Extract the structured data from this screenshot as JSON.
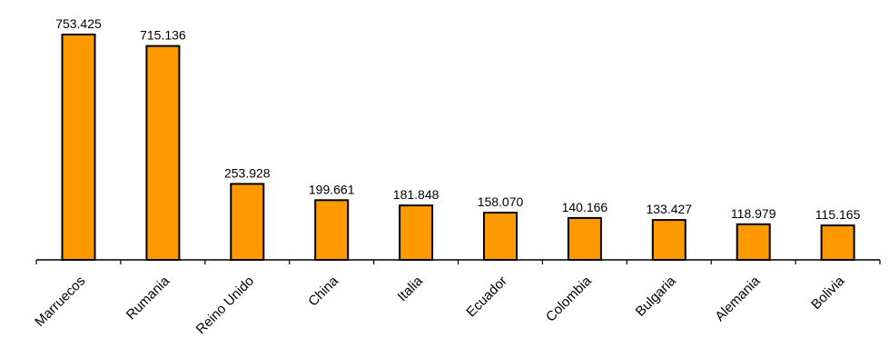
{
  "chart_data": {
    "type": "bar",
    "categories": [
      "Marruecos",
      "Rumania",
      "Reino Unido",
      "China",
      "Italia",
      "Ecuador",
      "Colombia",
      "Bulgaria",
      "Alemania",
      "Bolivia"
    ],
    "values": [
      753425,
      715136,
      253928,
      199661,
      181848,
      158070,
      140166,
      133427,
      118979,
      115165
    ],
    "value_labels": [
      "753.425",
      "715.136",
      "253.928",
      "199.661",
      "181.848",
      "158.070",
      "140.166",
      "133.427",
      "118.979",
      "115.165"
    ],
    "title": "",
    "xlabel": "",
    "ylabel": "",
    "ylim": [
      0,
      760000
    ],
    "grid": false,
    "legend": "none",
    "colors": {
      "bar_fill": "#FF9900",
      "bar_stroke": "#000000"
    }
  }
}
